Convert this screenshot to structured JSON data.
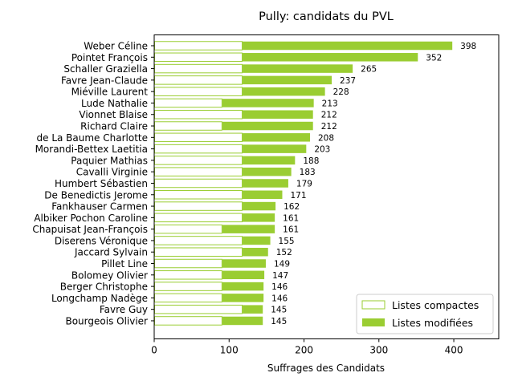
{
  "chart_data": {
    "type": "bar",
    "orientation": "horizontal",
    "stacked": true,
    "title": "Pully: candidats du PVL",
    "xlabel": "Suffrages des Candidats",
    "ylabel": "",
    "xlim": [
      0,
      460
    ],
    "xticks": [
      0,
      100,
      200,
      300,
      400
    ],
    "grid": false,
    "legend_position": "bottom-right",
    "colors": {
      "compact_edge": "#9acd32",
      "compact_fill": "#ffffff",
      "modified_fill": "#9acd32"
    },
    "categories": [
      "Weber Céline",
      "Pointet François",
      "Schaller Graziella",
      "Favre Jean-Claude",
      "Miéville Laurent",
      "Lude Nathalie",
      "Vionnet Blaise",
      "Richard Claire",
      "de La Baume Charlotte",
      "Morandi-Bettex Laetitia",
      "Paquier Mathias",
      "Cavalli Virginie",
      "Humbert Sébastien",
      "De Benedictis Jerome",
      "Fankhauser Carmen",
      "Albiker Pochon Caroline",
      "Chapuisat Jean-François",
      "Diserens Véronique",
      "Jaccard Sylvain",
      "Pillet Line",
      "Bolomey Olivier",
      "Berger Christophe",
      "Longchamp Nadège",
      "Favre Guy",
      "Bourgeois Olivier"
    ],
    "series": [
      {
        "name": "Listes compactes",
        "values": [
          118,
          118,
          118,
          118,
          118,
          91,
          118,
          91,
          118,
          118,
          118,
          118,
          118,
          118,
          118,
          118,
          91,
          118,
          118,
          91,
          91,
          91,
          91,
          118,
          91
        ]
      },
      {
        "name": "Listes modifiées",
        "values": [
          280,
          234,
          147,
          119,
          110,
          122,
          94,
          121,
          90,
          85,
          70,
          65,
          61,
          53,
          44,
          43,
          70,
          37,
          34,
          58,
          56,
          55,
          55,
          27,
          54
        ]
      }
    ],
    "totals": [
      398,
      352,
      265,
      237,
      228,
      213,
      212,
      212,
      208,
      203,
      188,
      183,
      179,
      171,
      162,
      161,
      161,
      155,
      152,
      149,
      147,
      146,
      146,
      145,
      145
    ],
    "total_labels": [
      "398",
      "352",
      "265",
      "237",
      "228",
      "213",
      "212",
      "212",
      "208",
      "203",
      "188",
      "183",
      "179",
      "171",
      "162",
      "161",
      "161",
      "155",
      "152",
      "149",
      "147",
      "146",
      "146",
      "145",
      "145"
    ]
  }
}
